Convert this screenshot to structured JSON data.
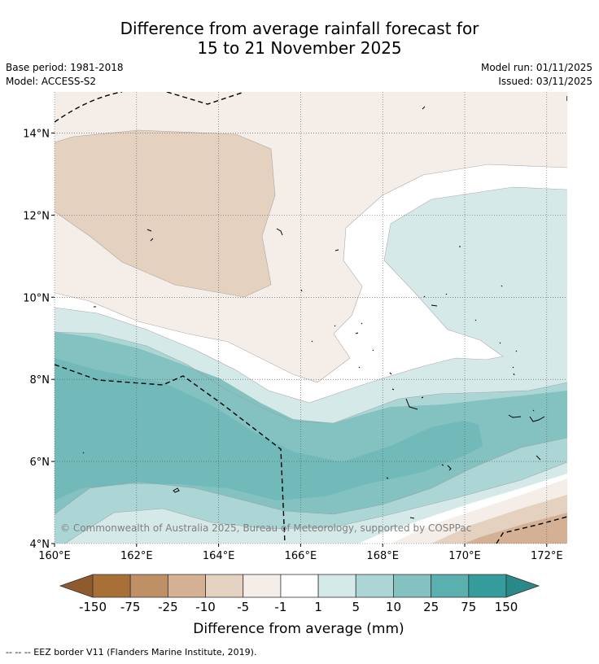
{
  "header": {
    "title_line1": "Difference from average rainfall forecast for",
    "title_line2": "15 to 21 November 2025",
    "base_period": "Base period: 1981-2018",
    "model": "Model: ACCESS-S2",
    "model_run": "Model run: 01/11/2025",
    "issued": "Issued: 03/11/2025"
  },
  "map": {
    "lon_range": [
      160,
      172.5
    ],
    "lat_range": [
      4,
      15
    ],
    "x_ticks": [
      "160°E",
      "162°E",
      "164°E",
      "166°E",
      "168°E",
      "170°E",
      "172°E"
    ],
    "x_tick_values": [
      160,
      162,
      164,
      166,
      168,
      170,
      172
    ],
    "y_ticks": [
      "4°N",
      "6°N",
      "8°N",
      "10°N",
      "12°N",
      "14°N"
    ],
    "y_tick_values": [
      4,
      6,
      8,
      10,
      12,
      14
    ],
    "copyright": "© Commonwealth of Australia 2025, Bureau of Meteorology, supported by COSPPac"
  },
  "colorbar": {
    "labels": [
      "-150",
      "-75",
      "-25",
      "-10",
      "-5",
      "-1",
      "1",
      "5",
      "10",
      "25",
      "75",
      "150"
    ],
    "colors": [
      "#a87036",
      "#bf9066",
      "#d4b194",
      "#e4d1bf",
      "#f4ede8",
      "#ffffff",
      "#d6e9e9",
      "#acd6d6",
      "#84c1c1",
      "#5aafaf",
      "#349c9b"
    ],
    "low_arrow_color": "#8f5a2e",
    "high_arrow_color": "#2a8887",
    "caption": "Difference from average (mm)"
  },
  "footnote": "--  --  -- EEZ border V11 (Flanders Marine Institute, 2019)."
}
